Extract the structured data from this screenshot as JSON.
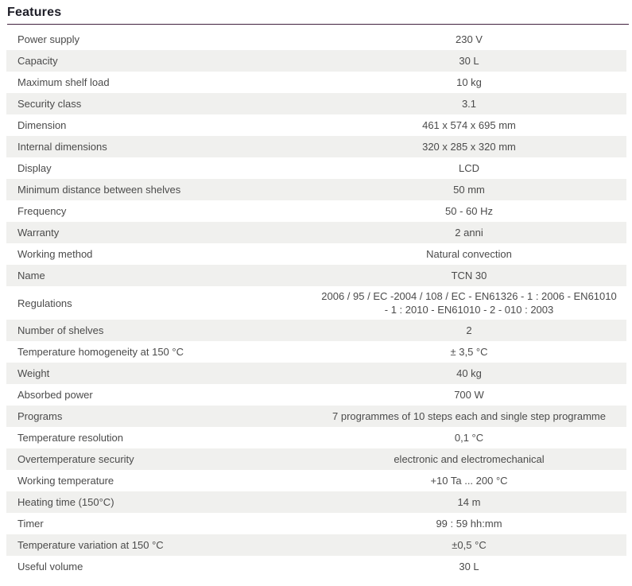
{
  "header": {
    "title": "Features"
  },
  "colors": {
    "heading_text": "#1d1d27",
    "rule_accent": "#40203e",
    "row_alt_bg": "#f0f0ee",
    "row_text": "#4b4b4b"
  },
  "table": {
    "rows": [
      {
        "label": "Power supply",
        "value": "230 V"
      },
      {
        "label": "Capacity",
        "value": "30 L"
      },
      {
        "label": "Maximum shelf load",
        "value": "10 kg"
      },
      {
        "label": "Security class",
        "value": "3.1"
      },
      {
        "label": "Dimension",
        "value": "461 x 574 x 695 mm"
      },
      {
        "label": "Internal dimensions",
        "value": "320 x 285 x 320 mm"
      },
      {
        "label": "Display",
        "value": "LCD"
      },
      {
        "label": "Minimum distance between shelves",
        "value": "50 mm"
      },
      {
        "label": "Frequency",
        "value": "50 - 60 Hz"
      },
      {
        "label": "Warranty",
        "value": "2 anni"
      },
      {
        "label": "Working method",
        "value": "Natural convection"
      },
      {
        "label": "Name",
        "value": "TCN 30"
      },
      {
        "label": "Regulations",
        "value": "2006 / 95 / EC -2004 / 108 / EC - EN61326 - 1 : 2006 - EN61010 - 1 : 2010 - EN61010 - 2 - 010 : 2003"
      },
      {
        "label": "Number of shelves",
        "value": "2"
      },
      {
        "label": "Temperature homogeneity at 150 °C",
        "value": "± 3,5 °C"
      },
      {
        "label": "Weight",
        "value": "40 kg"
      },
      {
        "label": "Absorbed power",
        "value": "700 W"
      },
      {
        "label": "Programs",
        "value": "7 programmes of 10 steps each and single step programme"
      },
      {
        "label": "Temperature resolution",
        "value": "0,1 °C"
      },
      {
        "label": "Overtemperature security",
        "value": "electronic and electromechanical"
      },
      {
        "label": "Working temperature",
        "value": "+10 Ta ... 200 °C"
      },
      {
        "label": "Heating time (150°C)",
        "value": "14 m"
      },
      {
        "label": "Timer",
        "value": "99 : 59 hh:mm"
      },
      {
        "label": "Temperature variation at 150 °C",
        "value": "±0,5 °C"
      },
      {
        "label": "Useful volume",
        "value": "30 L"
      }
    ]
  }
}
